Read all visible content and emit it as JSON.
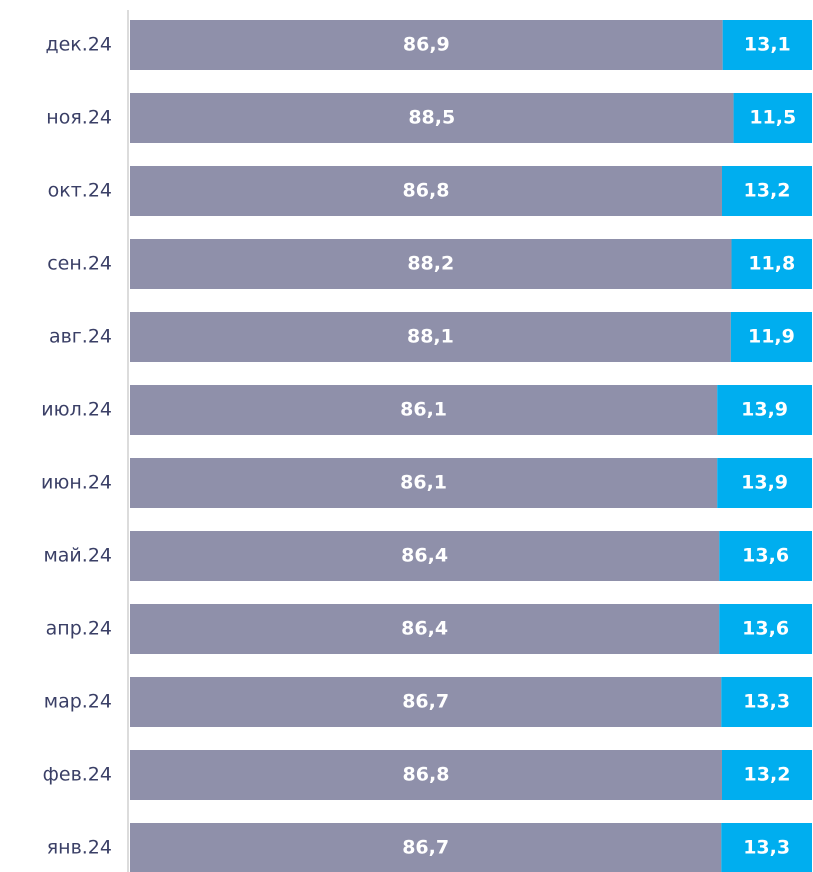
{
  "chart_data": {
    "type": "stacked_bar_horizontal",
    "categories": [
      "дек.24",
      "ноя.24",
      "окт.24",
      "сен.24",
      "авг.24",
      "июл.24",
      "июн.24",
      "май.24",
      "апр.24",
      "мар.24",
      "фев.24",
      "янв.24"
    ],
    "series": [
      {
        "color": "#8f90aa",
        "values": [
          86.9,
          88.5,
          86.8,
          88.2,
          88.1,
          86.1,
          86.1,
          86.4,
          86.4,
          86.7,
          86.8,
          86.7
        ],
        "value_labels": [
          "86,9",
          "88,5",
          "86,8",
          "88,2",
          "88,1",
          "86,1",
          "86,1",
          "86,4",
          "86,4",
          "86,7",
          "86,8",
          "86,7"
        ]
      },
      {
        "color": "#00aeef",
        "values": [
          13.1,
          11.5,
          13.2,
          11.8,
          11.9,
          13.9,
          13.9,
          13.6,
          13.6,
          13.3,
          13.2,
          13.3
        ],
        "value_labels": [
          "13,1",
          "11,5",
          "13,2",
          "11,8",
          "11,9",
          "13,9",
          "13,9",
          "13,6",
          "13,6",
          "13,3",
          "13,2",
          "13,3"
        ]
      }
    ],
    "xlim": [
      0,
      100
    ]
  }
}
